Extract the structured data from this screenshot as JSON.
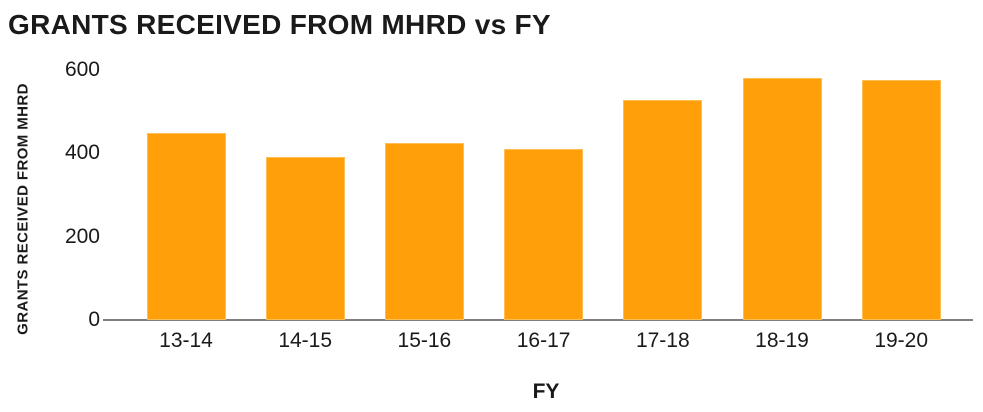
{
  "header": {
    "title": "GRANTS RECEIVED FROM MHRD vs FY"
  },
  "chart_data": {
    "type": "bar",
    "title": "GRANTS RECEIVED FROM MHRD vs FY",
    "categories": [
      "13-14",
      "14-15",
      "15-16",
      "16-17",
      "17-18",
      "18-19",
      "19-20"
    ],
    "values": [
      449,
      392,
      424,
      410,
      528,
      582,
      576
    ],
    "xlabel": "FY",
    "ylabel": "GRANTS RECEIVED FROM MHRD",
    "ylim": [
      0,
      600
    ],
    "yticks": [
      0,
      200,
      400,
      600
    ],
    "grid": false,
    "legend": false,
    "bar_color": "#FFA00A",
    "bar_border_color": "#FFBE52",
    "axis_line_color": "#7f7f7f",
    "text_color": "#1a1a1a"
  }
}
